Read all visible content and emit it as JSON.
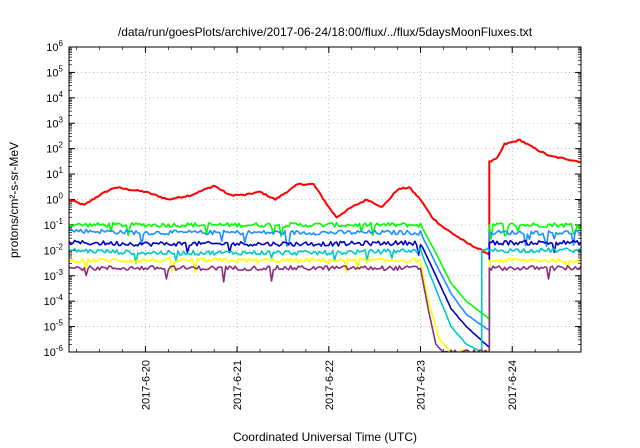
{
  "chart_data": {
    "type": "line",
    "title": "/data/run/goesPlots/archive/2017-06-24/18:00/flux/../flux/5daysMoonFluxes.txt",
    "xlabel": "Coordinated Universal Time (UTC)",
    "ylabel": "protons/cm²-s-sr-MeV",
    "y_scale": "log",
    "ylim": [
      1e-06,
      1000000.0
    ],
    "xlim": [
      "2017-06-19 04:00",
      "2017-06-24 18:00"
    ],
    "grid": true,
    "legend": "none",
    "x_ticks": [
      "2017-6-20",
      "2017-6-21",
      "2017-6-22",
      "2017-6-23",
      "2017-6-24"
    ],
    "y_ticks": [
      {
        "value": 1e-06,
        "base": "10",
        "exp": "-6"
      },
      {
        "value": 1e-05,
        "base": "10",
        "exp": "-5"
      },
      {
        "value": 0.0001,
        "base": "10",
        "exp": "-4"
      },
      {
        "value": 0.001,
        "base": "10",
        "exp": "-3"
      },
      {
        "value": 0.01,
        "base": "10",
        "exp": "-2"
      },
      {
        "value": 0.1,
        "base": "10",
        "exp": "-1"
      },
      {
        "value": 1.0,
        "base": "10",
        "exp": "0"
      },
      {
        "value": 10.0,
        "base": "10",
        "exp": "1"
      },
      {
        "value": 100.0,
        "base": "10",
        "exp": "2"
      },
      {
        "value": 1000.0,
        "base": "10",
        "exp": "3"
      },
      {
        "value": 10000.0,
        "base": "10",
        "exp": "4"
      },
      {
        "value": 100000.0,
        "base": "10",
        "exp": "5"
      },
      {
        "value": 1000000.0,
        "base": "10",
        "exp": "6"
      }
    ],
    "series": [
      {
        "color": "#ff0000",
        "x": [
          "2017-06-19 04:00",
          "2017-06-19 08:00",
          "2017-06-19 12:00",
          "2017-06-19 16:00",
          "2017-06-20 00:00",
          "2017-06-20 06:00",
          "2017-06-20 12:00",
          "2017-06-20 18:00",
          "2017-06-20 22:00",
          "2017-06-21 02:00",
          "2017-06-21 06:00",
          "2017-06-21 10:00",
          "2017-06-21 16:00",
          "2017-06-21 20:00",
          "2017-06-22 00:00",
          "2017-06-22 02:00",
          "2017-06-22 06:00",
          "2017-06-22 10:00",
          "2017-06-22 14:00",
          "2017-06-22 18:00",
          "2017-06-22 21:00",
          "2017-06-23 00:00",
          "2017-06-23 03:00",
          "2017-06-23 06:00",
          "2017-06-23 12:00",
          "2017-06-23 18:00",
          "2017-06-23 18:00",
          "2017-06-23 20:00",
          "2017-06-23 22:00",
          "2017-06-24 02:00",
          "2017-06-24 06:00",
          "2017-06-24 10:00",
          "2017-06-24 14:00",
          "2017-06-24 18:00"
        ],
        "y": [
          1.0,
          0.6,
          1.5,
          3.0,
          2.0,
          1.0,
          1.5,
          3.5,
          1.5,
          1.5,
          2.0,
          1.0,
          4.0,
          4.0,
          0.5,
          0.2,
          0.5,
          1.0,
          0.5,
          2.5,
          3.0,
          1.0,
          0.2,
          0.08,
          0.02,
          0.007,
          30,
          40,
          150,
          220,
          100,
          50,
          40,
          30
        ]
      },
      {
        "color": "#00ff00",
        "x": [
          "2017-06-19 04:00",
          "2017-06-20 00:00",
          "2017-06-21 00:00",
          "2017-06-22 00:00",
          "2017-06-23 00:00",
          "2017-06-23 04:00",
          "2017-06-23 08:00",
          "2017-06-23 12:00",
          "2017-06-23 18:00",
          "2017-06-23 18:00",
          "2017-06-24 00:00",
          "2017-06-24 12:00",
          "2017-06-24 18:00"
        ],
        "y": [
          0.1,
          0.1,
          0.1,
          0.1,
          0.1,
          0.008,
          0.0005,
          0.0001,
          2e-05,
          0.1,
          0.1,
          0.1,
          0.1
        ]
      },
      {
        "color": "#1e90ff",
        "x": [
          "2017-06-19 04:00",
          "2017-06-20 00:00",
          "2017-06-21 00:00",
          "2017-06-22 00:00",
          "2017-06-23 00:00",
          "2017-06-23 04:00",
          "2017-06-23 08:00",
          "2017-06-23 12:00",
          "2017-06-23 18:00",
          "2017-06-23 18:00",
          "2017-06-24 00:00",
          "2017-06-24 12:00",
          "2017-06-24 18:00"
        ],
        "y": [
          0.06,
          0.05,
          0.05,
          0.05,
          0.05,
          0.003,
          0.0002,
          3e-05,
          7e-06,
          0.05,
          0.05,
          0.05,
          0.05
        ]
      },
      {
        "color": "#0000cd",
        "x": [
          "2017-06-19 04:00",
          "2017-06-20 00:00",
          "2017-06-21 00:00",
          "2017-06-22 00:00",
          "2017-06-23 00:00",
          "2017-06-23 04:00",
          "2017-06-23 08:00",
          "2017-06-23 12:00",
          "2017-06-23 18:00",
          "2017-06-23 18:00",
          "2017-06-24 00:00",
          "2017-06-24 12:00",
          "2017-06-24 18:00"
        ],
        "y": [
          0.02,
          0.018,
          0.018,
          0.018,
          0.02,
          0.001,
          5e-05,
          1e-05,
          1.5e-06,
          0.02,
          0.02,
          0.02,
          0.02
        ]
      },
      {
        "color": "#00c8c8",
        "x": [
          "2017-06-19 04:00",
          "2017-06-20 00:00",
          "2017-06-21 00:00",
          "2017-06-22 00:00",
          "2017-06-23 00:00",
          "2017-06-23 04:00",
          "2017-06-23 08:00",
          "2017-06-23 12:00",
          "2017-06-23 16:00",
          "2017-06-23 16:00",
          "2017-06-24 00:00",
          "2017-06-24 12:00",
          "2017-06-24 18:00"
        ],
        "y": [
          0.01,
          0.008,
          0.008,
          0.008,
          0.01,
          0.0003,
          1e-05,
          2e-06,
          1e-06,
          0.01,
          0.01,
          0.01,
          0.01
        ]
      },
      {
        "color": "#ffff00",
        "x": [
          "2017-06-19 04:00",
          "2017-06-20 00:00",
          "2017-06-21 00:00",
          "2017-06-22 00:00",
          "2017-06-23 00:00",
          "2017-06-23 02:00",
          "2017-06-23 05:00",
          "2017-06-23 08:00",
          "2017-06-23 08:00",
          "2017-06-23 18:00",
          "2017-06-23 18:00",
          "2017-06-24 00:00",
          "2017-06-24 12:00",
          "2017-06-24 18:00"
        ],
        "y": [
          0.004,
          0.004,
          0.004,
          0.004,
          0.004,
          0.0001,
          3e-06,
          1e-06,
          1e-06,
          1e-06,
          0.004,
          0.004,
          0.004,
          0.004
        ]
      },
      {
        "color": "#8b2f7d",
        "x": [
          "2017-06-19 04:00",
          "2017-06-20 00:00",
          "2017-06-21 00:00",
          "2017-06-22 00:00",
          "2017-06-23 00:00",
          "2017-06-23 02:00",
          "2017-06-23 04:00",
          "2017-06-23 06:00",
          "2017-06-23 18:00",
          "2017-06-23 18:00",
          "2017-06-24 00:00",
          "2017-06-24 12:00",
          "2017-06-24 18:00"
        ],
        "y": [
          0.002,
          0.002,
          0.002,
          0.002,
          0.002,
          5e-05,
          2e-06,
          1e-06,
          1e-06,
          0.002,
          0.002,
          0.002,
          0.002
        ]
      }
    ]
  }
}
